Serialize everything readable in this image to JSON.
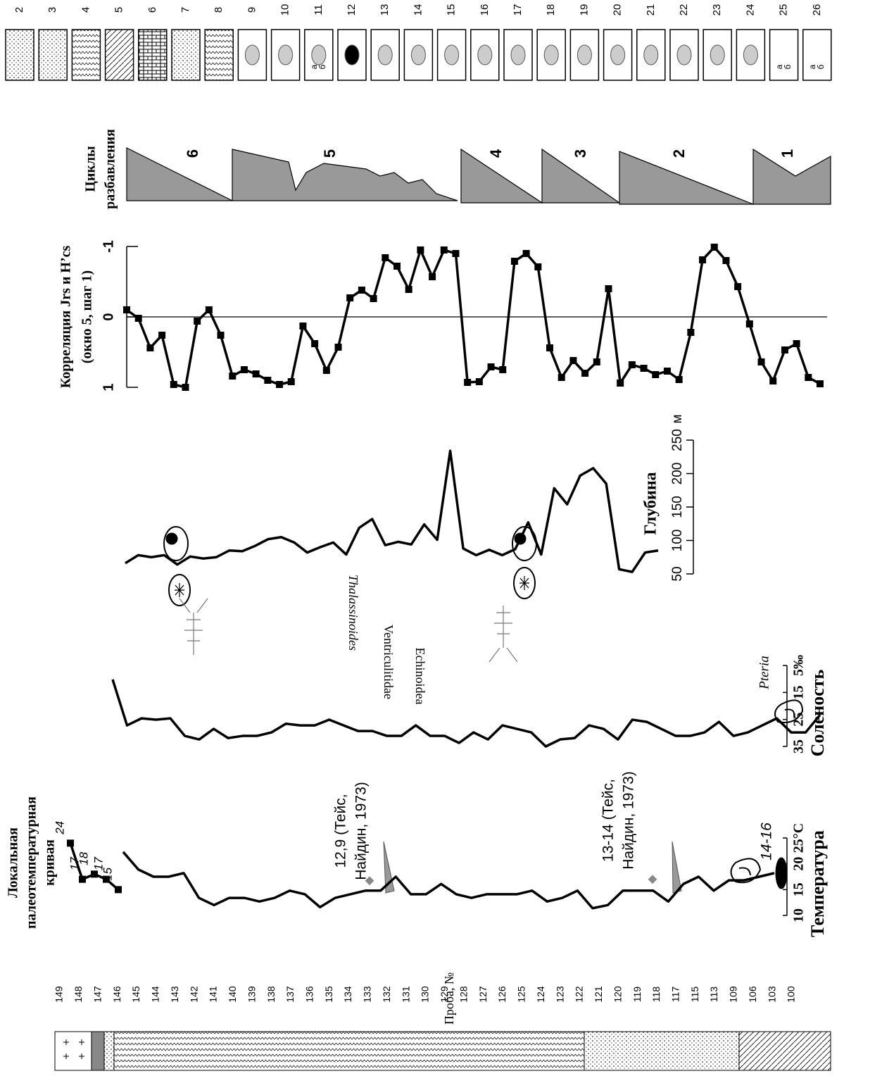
{
  "legend": {
    "items": [
      {
        "number": "2"
      },
      {
        "number": "3"
      },
      {
        "number": "4"
      },
      {
        "number": "5"
      },
      {
        "number": "6"
      },
      {
        "number": "7"
      },
      {
        "number": "8"
      },
      {
        "number": "9"
      },
      {
        "number": "10"
      },
      {
        "number": "11",
        "sub": [
          "а",
          "б"
        ]
      },
      {
        "number": "12"
      },
      {
        "number": "13"
      },
      {
        "number": "14"
      },
      {
        "number": "15"
      },
      {
        "number": "16"
      },
      {
        "number": "17"
      },
      {
        "number": "18"
      },
      {
        "number": "19"
      },
      {
        "number": "20"
      },
      {
        "number": "21"
      },
      {
        "number": "22"
      },
      {
        "number": "23"
      },
      {
        "number": "24"
      },
      {
        "number": "25",
        "sub": [
          "а",
          "б"
        ]
      },
      {
        "number": "26",
        "sub": [
          "а",
          "б"
        ]
      }
    ]
  },
  "cycles": {
    "title_lines": [
      "Циклы",
      "разбавления"
    ],
    "labels": [
      "6",
      "5",
      "4",
      "3",
      "2",
      "1"
    ]
  },
  "section": {
    "axis_label": "Проба, №",
    "samples": [
      "149",
      "148",
      "147",
      "146",
      "145",
      "144",
      "143",
      "142",
      "141",
      "140",
      "139",
      "138",
      "137",
      "136",
      "135",
      "134",
      "133",
      "132",
      "131",
      "130",
      "129",
      "128",
      "127",
      "126",
      "125",
      "124",
      "123",
      "122",
      "121",
      "120",
      "119",
      "118",
      "117",
      "115",
      "113",
      "109",
      "106",
      "103",
      "100"
    ]
  },
  "chart_data": [
    {
      "type": "line",
      "title": "Корреляция Jrs и H’cs",
      "subtitle": "(окно 5, шаг 1)",
      "markers": true,
      "color": "#000000",
      "ylim": [
        1,
        -1
      ],
      "yticks": [
        -1,
        0,
        1
      ],
      "values": [
        -0.1,
        0.02,
        0.44,
        0.26,
        0.96,
        1.0,
        0.06,
        -0.1,
        0.26,
        0.84,
        0.75,
        0.81,
        0.9,
        0.96,
        0.92,
        0.13,
        0.38,
        0.76,
        0.43,
        -0.27,
        -0.38,
        -0.26,
        -0.84,
        -0.72,
        -0.39,
        -0.95,
        -0.57,
        -0.95,
        -0.9,
        0.93,
        0.92,
        0.71,
        0.75,
        -0.79,
        -0.9,
        -0.71,
        0.44,
        0.86,
        0.62,
        0.8,
        0.64,
        -0.4,
        0.94,
        0.68,
        0.73,
        0.82,
        0.77,
        0.89,
        0.22,
        -0.81,
        -0.99,
        -0.8,
        -0.43,
        0.1,
        0.64,
        0.91,
        0.47,
        0.38,
        0.86,
        0.95
      ]
    },
    {
      "type": "line",
      "title": "Глубина",
      "y_unit": "м",
      "color": "#000000",
      "ylim": [
        50,
        250
      ],
      "yticks": [
        50,
        100,
        150,
        200,
        250
      ],
      "values": [
        66,
        78,
        75,
        78,
        64,
        76,
        73,
        75,
        85,
        84,
        92,
        102,
        105,
        97,
        82,
        90,
        97,
        79,
        119,
        132,
        93,
        98,
        94,
        124,
        101,
        234,
        88,
        78,
        86,
        78,
        87,
        127,
        79,
        178,
        154,
        197,
        208,
        185,
        57,
        53,
        82,
        85
      ]
    },
    {
      "type": "line",
      "title": "Соленость",
      "color": "#000000",
      "ylim": [
        35,
        5
      ],
      "yticks": [
        35,
        25,
        15,
        {
          "value": 5,
          "label": "5‰"
        }
      ],
      "annotations": [
        "Pteria",
        "Echinoidea",
        "Ventriculitidae",
        "Thalassinoides"
      ],
      "values": [
        10.2,
        27.2,
        24.6,
        25.1,
        24.6,
        31.1,
        32.4,
        28.5,
        31.9,
        31.1,
        31.1,
        29.8,
        26.6,
        27.2,
        27.2,
        25.1,
        27.2,
        29.3,
        29.3,
        31.1,
        31.1,
        27.2,
        31.1,
        31.1,
        33.7,
        29.8,
        32.4,
        27.2,
        28.5,
        29.8,
        35,
        32.4,
        31.9,
        27.2,
        28.5,
        32.4,
        25.1,
        25.9,
        28.5,
        31.1,
        31.1,
        29.8,
        25.9,
        31.1,
        29.8,
        27.2,
        24.6,
        29.8,
        29.8,
        23.3
      ]
    },
    {
      "type": "line",
      "title": "Температура",
      "color": "#000000",
      "ylim": [
        10,
        25
      ],
      "yticks": [
        10,
        15,
        20,
        {
          "value": 25,
          "label": "25°C"
        }
      ],
      "local_title": [
        "Локальная",
        "палеотемпературная",
        "кривая"
      ],
      "annotations": [
        [
          "12,9 (Тейс,",
          "Найдин, 1973)"
        ],
        [
          "13-14 (Тейс,",
          "Найдин, 1973)"
        ],
        [
          "14-16"
        ]
      ],
      "series": [
        {
          "values": [
            22.3,
            18.9,
            17.5,
            17.5,
            18.2,
            13.4,
            12,
            13.4,
            13.4,
            12.7,
            13.4,
            14.8,
            14.1,
            11.6,
            13.4,
            14.1,
            14.8,
            14.8,
            17.5,
            14.1,
            14.1,
            16.1,
            14.1,
            13.4,
            14.1,
            14.1,
            14.1,
            14.8,
            12.7,
            13.4,
            14.8,
            11.4,
            12,
            14.8,
            14.8,
            14.8,
            12.7,
            16.1,
            17.5,
            14.8,
            16.8,
            16.8,
            17.5,
            18.2
          ]
        },
        {
          "values": [
            24,
            17,
            18,
            17,
            15
          ],
          "markers": true
        }
      ]
    }
  ]
}
